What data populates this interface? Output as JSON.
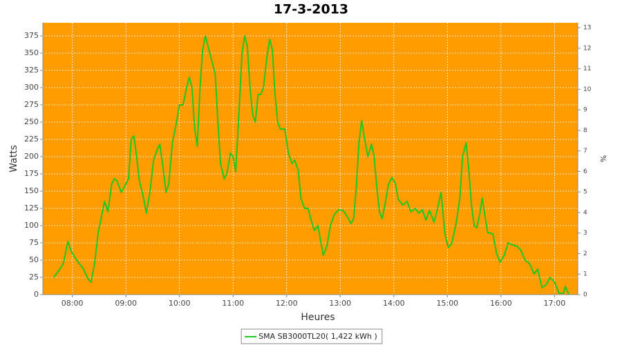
{
  "chart_data": {
    "type": "line",
    "title": "17-3-2013",
    "x_label": "Heures",
    "y_label": "Watts",
    "y2_label": "%",
    "x": [
      "07:39",
      "07:45",
      "07:50",
      "07:55",
      "07:59",
      "08:05",
      "08:12",
      "08:18",
      "08:21",
      "08:25",
      "08:29",
      "08:33",
      "08:36",
      "08:40",
      "08:44",
      "08:47",
      "08:50",
      "08:55",
      "08:59",
      "09:03",
      "09:06",
      "09:09",
      "09:12",
      "09:15",
      "09:19",
      "09:23",
      "09:27",
      "09:31",
      "09:35",
      "09:38",
      "09:41",
      "09:45",
      "09:48",
      "09:52",
      "09:56",
      "10:00",
      "10:04",
      "10:08",
      "10:11",
      "10:14",
      "10:17",
      "10:20",
      "10:23",
      "10:26",
      "10:29",
      "10:33",
      "10:36",
      "10:40",
      "10:43",
      "10:46",
      "10:50",
      "10:53",
      "10:57",
      "11:00",
      "11:03",
      "11:06",
      "11:10",
      "11:13",
      "11:16",
      "11:19",
      "11:22",
      "11:25",
      "11:28",
      "11:31",
      "11:34",
      "11:38",
      "11:41",
      "11:44",
      "11:47",
      "11:50",
      "11:53",
      "11:58",
      "12:02",
      "12:06",
      "12:09",
      "12:13",
      "12:16",
      "12:20",
      "12:24",
      "12:27",
      "12:31",
      "12:35",
      "12:38",
      "12:41",
      "12:45",
      "12:49",
      "12:53",
      "12:58",
      "13:03",
      "13:08",
      "13:12",
      "13:15",
      "13:18",
      "13:21",
      "13:24",
      "13:28",
      "13:31",
      "13:35",
      "13:38",
      "13:41",
      "13:44",
      "13:47",
      "13:50",
      "13:54",
      "13:58",
      "14:02",
      "14:05",
      "14:10",
      "14:15",
      "14:19",
      "14:24",
      "14:28",
      "14:32",
      "14:36",
      "14:40",
      "14:45",
      "14:49",
      "14:53",
      "14:57",
      "15:01",
      "15:05",
      "15:10",
      "15:14",
      "15:17",
      "15:21",
      "15:24",
      "15:27",
      "15:30",
      "15:33",
      "15:36",
      "15:39",
      "15:42",
      "15:45",
      "15:51",
      "15:55",
      "15:59",
      "16:04",
      "16:08",
      "16:13",
      "16:18",
      "16:22",
      "16:27",
      "16:32",
      "16:37",
      "16:41",
      "16:46",
      "16:51",
      "16:55",
      "17:00",
      "17:05",
      "17:10",
      "17:12",
      "17:16"
    ],
    "series": [
      {
        "name": "SMA SB3000TL20( 1,422 kWh )",
        "color": "#1ec81e",
        "values": [
          25,
          35,
          45,
          77,
          62,
          50,
          38,
          22,
          18,
          45,
          90,
          115,
          135,
          120,
          160,
          168,
          165,
          148,
          158,
          168,
          225,
          230,
          200,
          165,
          145,
          118,
          150,
          195,
          210,
          218,
          190,
          148,
          160,
          220,
          245,
          275,
          275,
          300,
          315,
          300,
          240,
          215,
          300,
          355,
          375,
          355,
          340,
          320,
          250,
          190,
          168,
          175,
          205,
          200,
          178,
          250,
          350,
          375,
          360,
          300,
          260,
          250,
          290,
          290,
          300,
          345,
          370,
          355,
          290,
          250,
          240,
          240,
          205,
          190,
          195,
          180,
          140,
          125,
          125,
          110,
          93,
          100,
          78,
          57,
          70,
          100,
          115,
          123,
          122,
          113,
          103,
          110,
          155,
          220,
          252,
          220,
          200,
          218,
          200,
          155,
          120,
          110,
          130,
          160,
          170,
          160,
          138,
          130,
          135,
          120,
          125,
          118,
          123,
          108,
          122,
          105,
          125,
          148,
          90,
          68,
          75,
          105,
          140,
          200,
          220,
          180,
          130,
          100,
          97,
          115,
          140,
          115,
          90,
          88,
          60,
          47,
          58,
          75,
          72,
          70,
          65,
          50,
          45,
          30,
          37,
          10,
          15,
          25,
          18,
          2,
          2,
          12,
          0
        ]
      }
    ],
    "xlim": [
      "07:27",
      "17:26"
    ],
    "xticks": [
      "08:00",
      "09:00",
      "10:00",
      "11:00",
      "12:00",
      "13:00",
      "14:00",
      "15:00",
      "16:00",
      "17:00"
    ],
    "ylim": [
      0,
      394
    ],
    "yticks": [
      0,
      25,
      50,
      75,
      100,
      125,
      150,
      175,
      200,
      225,
      250,
      275,
      300,
      325,
      350,
      375
    ],
    "y2lim": [
      0,
      13.24
    ],
    "y2ticks": [
      0,
      1,
      2,
      3,
      4,
      5,
      6,
      7,
      8,
      9,
      10,
      11,
      12,
      13
    ],
    "grid": true,
    "background": "#ff9c00",
    "legend": "bottom"
  }
}
